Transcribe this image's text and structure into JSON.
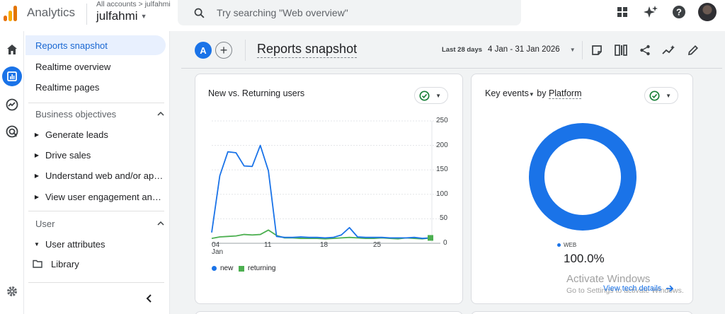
{
  "app": {
    "name": "Analytics",
    "breadcrumb": "All accounts > julfahmi",
    "account": "julfahmi"
  },
  "search": {
    "placeholder": "Try searching \"Web overview\""
  },
  "top_icons": [
    "apps-grid-icon",
    "sparkle-icon",
    "help-icon",
    "avatar"
  ],
  "rail_icons": [
    "home-icon",
    "reports-icon",
    "explore-icon",
    "advertising-icon",
    "settings-icon"
  ],
  "nav": {
    "items": [
      "Reports snapshot",
      "Realtime overview",
      "Realtime pages"
    ],
    "section_business": "Business objectives",
    "business_items": [
      "Generate leads",
      "Drive sales",
      "Understand web and/or app traffic",
      "View user engagement and retention"
    ],
    "section_user": "User",
    "user_attributes": "User attributes",
    "library": "Library",
    "collapse_icon": "chevron-left-icon"
  },
  "header": {
    "badge": "A",
    "title": "Reports snapshot",
    "date_label": "Last 28 days",
    "date_range": "4 Jan - 31 Jan 2026",
    "tools": [
      "customize-icon",
      "compare-icon",
      "share-icon",
      "insights-icon",
      "edit-icon"
    ]
  },
  "users_card": {
    "title": "New vs. Returning users",
    "y_ticks": [
      "250",
      "200",
      "150",
      "100",
      "50",
      "0"
    ],
    "x_ticks": [
      [
        "04",
        "Jan"
      ],
      [
        "11",
        ""
      ],
      [
        "18",
        ""
      ],
      [
        "25",
        ""
      ]
    ],
    "legend": [
      "new",
      "returning"
    ]
  },
  "key_events_card": {
    "title_metric": "Key events",
    "title_by": "by",
    "title_dim": "Platform",
    "legend_label": "WEB",
    "value": "100.0%",
    "link": "View tech details"
  },
  "watermark": {
    "line1": "Activate Windows",
    "line2": "Go to Settings to activate Windows."
  },
  "colors": {
    "accent": "#1a73e8",
    "new_series": "#1a73e8",
    "returning_series": "#4caf50",
    "selected_nav_bg": "#e8f0fe"
  },
  "chart_data": [
    {
      "type": "line",
      "title": "New vs. Returning users",
      "x": [
        4,
        5,
        6,
        7,
        8,
        9,
        10,
        11,
        12,
        13,
        14,
        15,
        16,
        17,
        18,
        19,
        20,
        21,
        22,
        23,
        24,
        25,
        26,
        27,
        28,
        29,
        30,
        31
      ],
      "x_ticks": [
        "04 Jan",
        "11",
        "18",
        "25"
      ],
      "ylim": [
        0,
        250
      ],
      "y_ticks": [
        0,
        50,
        100,
        150,
        200,
        250
      ],
      "series": [
        {
          "name": "new",
          "values": [
            22,
            138,
            187,
            185,
            158,
            157,
            200,
            148,
            14,
            12,
            12,
            13,
            12,
            12,
            11,
            12,
            17,
            32,
            13,
            12,
            12,
            12,
            11,
            11,
            11,
            12,
            10,
            11
          ]
        },
        {
          "name": "returning",
          "values": [
            10,
            13,
            14,
            15,
            18,
            17,
            18,
            27,
            16,
            11,
            11,
            10,
            10,
            10,
            9,
            10,
            11,
            12,
            11,
            10,
            10,
            11,
            10,
            9,
            11,
            10,
            9,
            11
          ]
        }
      ],
      "grid": "horizontal",
      "legend": "bottom-left"
    },
    {
      "type": "pie",
      "title": "Key events by Platform",
      "categories": [
        "WEB"
      ],
      "values": [
        100.0
      ],
      "style": "donut"
    }
  ]
}
